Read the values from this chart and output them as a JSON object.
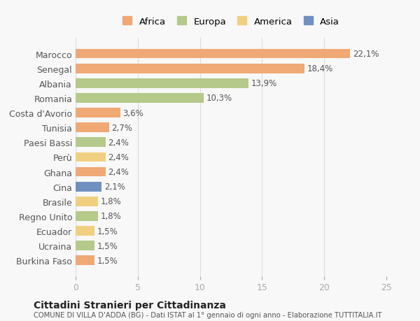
{
  "categories": [
    "Marocco",
    "Senegal",
    "Albania",
    "Romania",
    "Costa d'Avorio",
    "Tunisia",
    "Paesi Bassi",
    "Perù",
    "Ghana",
    "Cina",
    "Brasile",
    "Regno Unito",
    "Ecuador",
    "Ucraina",
    "Burkina Faso"
  ],
  "values": [
    22.1,
    18.4,
    13.9,
    10.3,
    3.6,
    2.7,
    2.4,
    2.4,
    2.4,
    2.1,
    1.8,
    1.8,
    1.5,
    1.5,
    1.5
  ],
  "labels": [
    "22,1%",
    "18,4%",
    "13,9%",
    "10,3%",
    "3,6%",
    "2,7%",
    "2,4%",
    "2,4%",
    "2,4%",
    "2,1%",
    "1,8%",
    "1,8%",
    "1,5%",
    "1,5%",
    "1,5%"
  ],
  "colors": [
    "#f0a875",
    "#f0a875",
    "#b5c98a",
    "#b5c98a",
    "#f0a875",
    "#f0a875",
    "#b5c98a",
    "#f0d080",
    "#f0a875",
    "#7090c0",
    "#f0d080",
    "#b5c98a",
    "#f0d080",
    "#b5c98a",
    "#f0a875"
  ],
  "legend_names": [
    "Africa",
    "Europa",
    "America",
    "Asia"
  ],
  "legend_colors": [
    "#f0a875",
    "#b5c98a",
    "#f0d080",
    "#7090c0"
  ],
  "xlim": [
    0,
    25
  ],
  "xticks": [
    0,
    5,
    10,
    15,
    20,
    25
  ],
  "title": "Cittadini Stranieri per Cittadinanza",
  "subtitle": "COMUNE DI VILLA D'ADDA (BG) - Dati ISTAT al 1° gennaio di ogni anno - Elaborazione TUTTITALIA.IT",
  "background_color": "#f8f8f8",
  "bar_height": 0.65
}
